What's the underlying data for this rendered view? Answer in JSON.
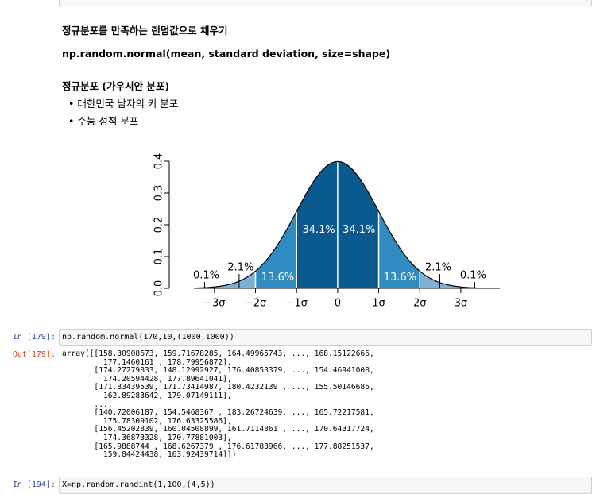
{
  "markdown": {
    "heading": "정규분포를 만족하는 랜덤값으로 채우기",
    "code_line": "np.random.normal(mean, standard deviation, size=shape)",
    "subheading": "정규분포 (가우시안 분포)",
    "bullets": [
      "대한민국 남자의 키 분포",
      "수능 성적 분포"
    ]
  },
  "chart_data": {
    "type": "normal-regions",
    "xlim": [
      -3.5,
      3.95
    ],
    "ylim": [
      0,
      0.4
    ],
    "yticks": [
      {
        "value": 0,
        "label": "0.0"
      },
      0.1,
      0.2,
      0.3,
      0.4
    ],
    "xticks": [
      {
        "value": -3,
        "label": "−3σ"
      },
      {
        "value": -2,
        "label": "−2σ"
      },
      {
        "value": -1,
        "label": "−1σ"
      },
      0,
      {
        "value": 1,
        "label": "1σ"
      },
      {
        "value": 2,
        "label": "2σ"
      },
      {
        "value": 3,
        "label": "3σ"
      }
    ],
    "regions": {
      "values": [
        0.1,
        2.1,
        13.6,
        34.1,
        34.1,
        13.6,
        2.1,
        0.1
      ],
      "value_labels": [
        "0.1%",
        "2.1%",
        "13.6%",
        "34.1%",
        "34.1%",
        "13.6%",
        "2.1%",
        "0.1%"
      ],
      "colors": [
        "#dbe8f3",
        "#7eb0d5",
        "#2e8cc0",
        "#0b5a8f",
        "#0b5a8f",
        "#2e8cc0",
        "#7eb0d5",
        "#dbe8f3"
      ]
    }
  },
  "cells": [
    {
      "prompt": "In [179]:",
      "code": "np.random.normal(170,10,(1000,1000))",
      "out_prompt": "Out[179]:",
      "output": "array([[158.30908673, 159.71678285, 164.49965743, ..., 168.15122666,\n         177.1460161 , 178.79956872],\n       [174.27279833, 148.12992927, 176.40853379, ..., 154.46941008,\n         174.20594428, 177.89641041],\n       [171.83439539, 171.73414987, 180.4232139 , ..., 155.50146686,\n         162.89283642, 179.07149111],\n       ...,\n       [140.72006187, 154.5468367 , 183.26724639, ..., 165.72217581,\n         175.78309102, 176.63325586],\n       [156.45202839, 160.04508899, 161.7114861 , ..., 170.64317724,\n         174.36873328, 170.77881003],\n       [165.9888744 , 168.6267379 , 176.61783966, ..., 177.88251537,\n         159.84424438, 163.92439714]])"
    },
    {
      "prompt": "In [194]:",
      "code": "X=np.random.randint(1,100,(4,5))"
    }
  ]
}
